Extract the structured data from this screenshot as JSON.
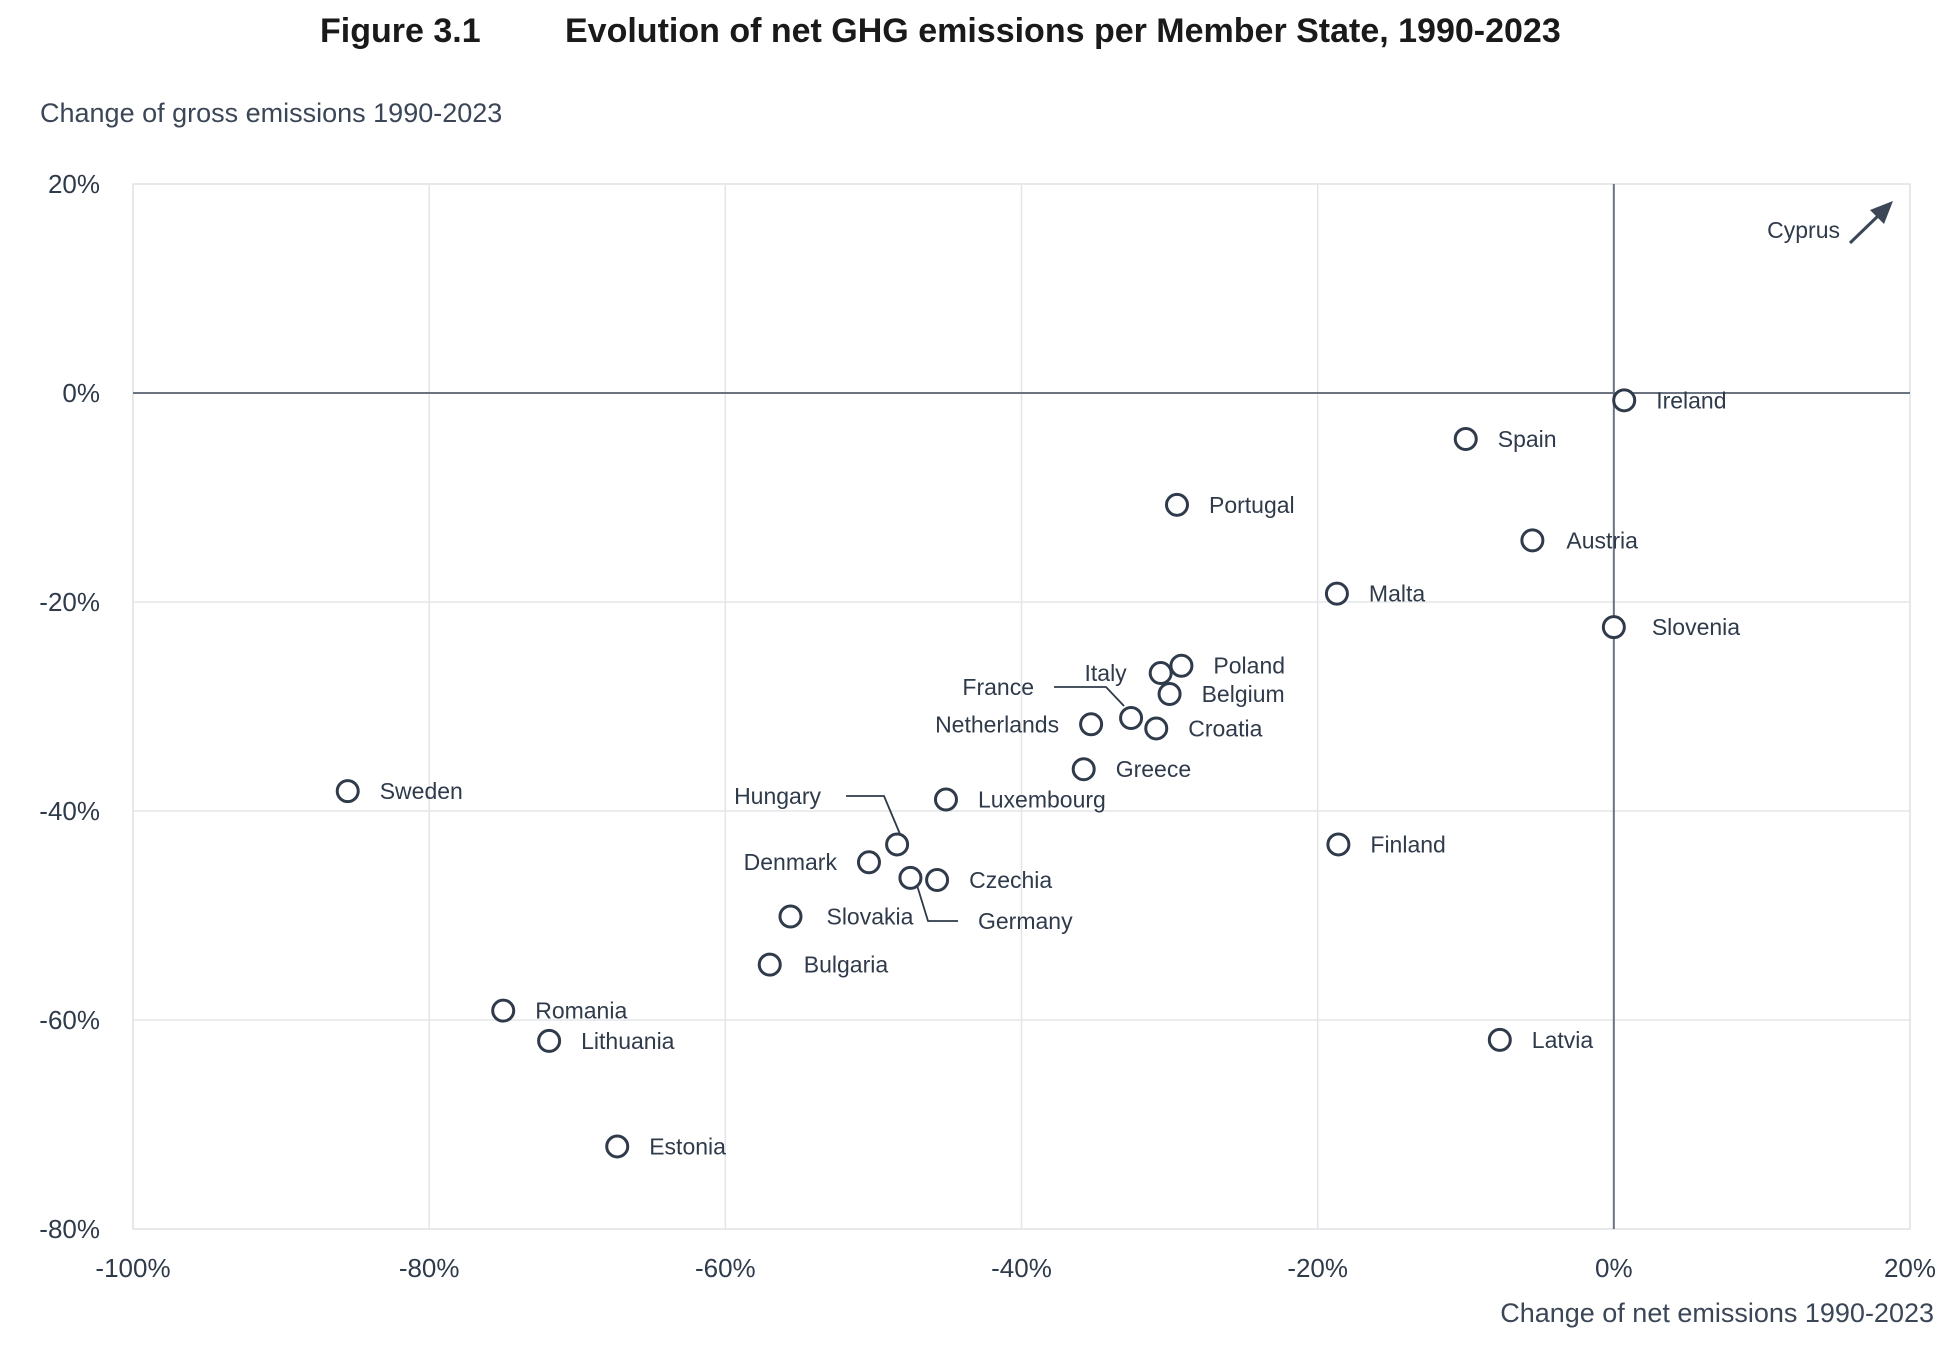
{
  "figure": {
    "number": "Figure 3.1",
    "title": "Evolution of net GHG emissions per Member State, 1990-2023"
  },
  "chart_data": {
    "type": "scatter",
    "title": "Evolution of net GHG emissions per Member State, 1990-2023",
    "xlabel": "Change of net emissions 1990-2023",
    "ylabel": "Change of gross emissions 1990-2023",
    "xlim": [
      -100,
      20
    ],
    "ylim": [
      -80,
      20
    ],
    "x_ticks": [
      -100,
      -80,
      -60,
      -40,
      -20,
      0,
      20
    ],
    "y_ticks": [
      20,
      0,
      -20,
      -40,
      -60,
      -80
    ],
    "x_tick_labels": [
      "-100%",
      "-80%",
      "-60%",
      "-40%",
      "-20%",
      "0%",
      "20%"
    ],
    "y_tick_labels": [
      "20%",
      "0%",
      "-20%",
      "-40%",
      "-60%",
      "-80%"
    ],
    "grid": true,
    "points": [
      {
        "name": "Ireland",
        "x": 0.7,
        "y": -0.7
      },
      {
        "name": "Spain",
        "x": -10.0,
        "y": -4.4
      },
      {
        "name": "Portugal",
        "x": -29.5,
        "y": -10.7
      },
      {
        "name": "Austria",
        "x": -5.5,
        "y": -14.1
      },
      {
        "name": "Malta",
        "x": -18.7,
        "y": -19.2
      },
      {
        "name": "Slovenia",
        "x": 0.0,
        "y": -22.4
      },
      {
        "name": "Poland",
        "x": -29.2,
        "y": -26.1
      },
      {
        "name": "Italy",
        "x": -30.6,
        "y": -26.8
      },
      {
        "name": "Belgium",
        "x": -30.0,
        "y": -28.8
      },
      {
        "name": "France",
        "x": -32.6,
        "y": -31.1
      },
      {
        "name": "Croatia",
        "x": -30.9,
        "y": -32.1
      },
      {
        "name": "Netherlands",
        "x": -35.3,
        "y": -31.7
      },
      {
        "name": "Greece",
        "x": -35.8,
        "y": -36.0
      },
      {
        "name": "Sweden",
        "x": -85.5,
        "y": -38.1
      },
      {
        "name": "Luxembourg",
        "x": -45.1,
        "y": -38.9
      },
      {
        "name": "Hungary",
        "x": -48.4,
        "y": -43.2
      },
      {
        "name": "Finland",
        "x": -18.6,
        "y": -43.2
      },
      {
        "name": "Denmark",
        "x": -50.3,
        "y": -44.9
      },
      {
        "name": "Germany",
        "x": -47.5,
        "y": -46.4
      },
      {
        "name": "Czechia",
        "x": -45.7,
        "y": -46.6
      },
      {
        "name": "Slovakia",
        "x": -55.6,
        "y": -50.1
      },
      {
        "name": "Bulgaria",
        "x": -57.0,
        "y": -54.7
      },
      {
        "name": "Romania",
        "x": -75.0,
        "y": -59.1
      },
      {
        "name": "Lithuania",
        "x": -71.9,
        "y": -62.0
      },
      {
        "name": "Latvia",
        "x": -7.7,
        "y": -61.9
      },
      {
        "name": "Estonia",
        "x": -67.3,
        "y": -72.1
      }
    ],
    "off_scale": [
      {
        "name": "Cyprus",
        "direction": "up-right"
      }
    ]
  }
}
